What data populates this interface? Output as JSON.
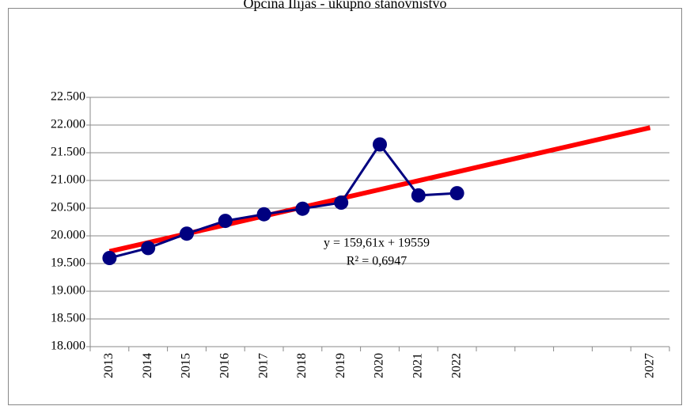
{
  "chart_data": {
    "type": "line",
    "title": "Općina Ilijaš - ukupno stanovništvo",
    "categories": [
      "2013",
      "2014",
      "2015",
      "2016",
      "2017",
      "2018",
      "2019",
      "2020",
      "2021",
      "2022",
      null,
      null,
      null,
      null,
      "2027"
    ],
    "series": [
      {
        "color": "#000080",
        "values": [
          19600,
          19780,
          20040,
          20270,
          20390,
          20490,
          20600,
          21650,
          20730,
          20770,
          null,
          null,
          null,
          null,
          null
        ]
      },
      {
        "color": "#ff0000",
        "values": [
          19718.6,
          19878.2,
          20037.8,
          20197.4,
          20357.1,
          20516.7,
          20676.3,
          20835.9,
          20995.5,
          21155.1,
          21314.7,
          21474.3,
          21633.9,
          21793.5,
          21953.2
        ]
      }
    ],
    "annotations": [
      "y = 159,61x + 19559",
      "R² = 0,6947"
    ],
    "ylim": [
      18000,
      22500
    ],
    "yticks": [
      {
        "value": 18000,
        "label": "18.000"
      },
      {
        "value": 18500,
        "label": "18.500"
      },
      {
        "value": 19000,
        "label": "19.000"
      },
      {
        "value": 19500,
        "label": "19.500"
      },
      {
        "value": 20000,
        "label": "20.000"
      },
      {
        "value": 20500,
        "label": "20.500"
      },
      {
        "value": 21000,
        "label": "21.000"
      },
      {
        "value": 21500,
        "label": "21.500"
      },
      {
        "value": 22000,
        "label": "22.000"
      },
      {
        "value": 22500,
        "label": "22.500"
      }
    ],
    "grid": true
  }
}
